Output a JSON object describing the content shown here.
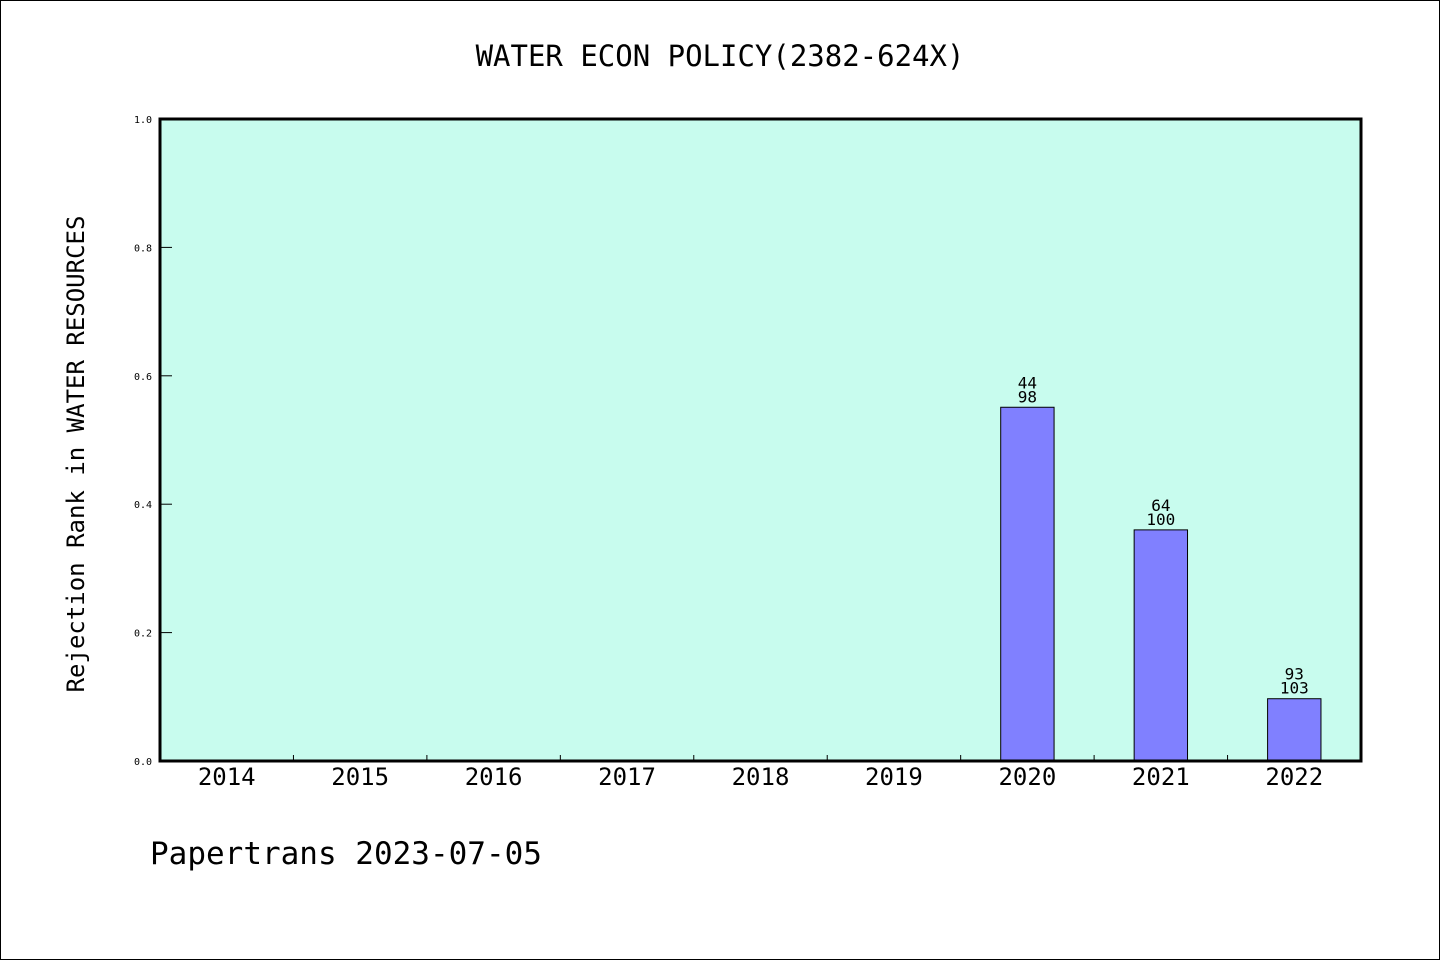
{
  "chart_data": {
    "type": "bar",
    "title": "WATER ECON POLICY(2382-624X)",
    "ylabel": "Rejection Rank in WATER RESOURCES",
    "xlabel": "",
    "categories": [
      "2014",
      "2015",
      "2016",
      "2017",
      "2018",
      "2019",
      "2020",
      "2021",
      "2022"
    ],
    "values": [
      null,
      null,
      null,
      null,
      null,
      null,
      0.551,
      0.36,
      0.097
    ],
    "bar_labels": [
      null,
      null,
      null,
      null,
      null,
      null,
      {
        "top": "44",
        "bottom": "98"
      },
      {
        "top": "64",
        "bottom": "100"
      },
      {
        "top": "93",
        "bottom": "103"
      }
    ],
    "ylim": [
      0,
      1.0
    ],
    "yticks": [
      "0.0",
      "0.2",
      "0.4",
      "0.6",
      "0.8",
      "1.0"
    ],
    "grid": false,
    "colors": {
      "plot_background": "#c8fcee",
      "bar_fill": "#8080ff",
      "bar_edge": "#000000"
    }
  },
  "footer": {
    "text": "Papertrans 2023-07-05"
  }
}
